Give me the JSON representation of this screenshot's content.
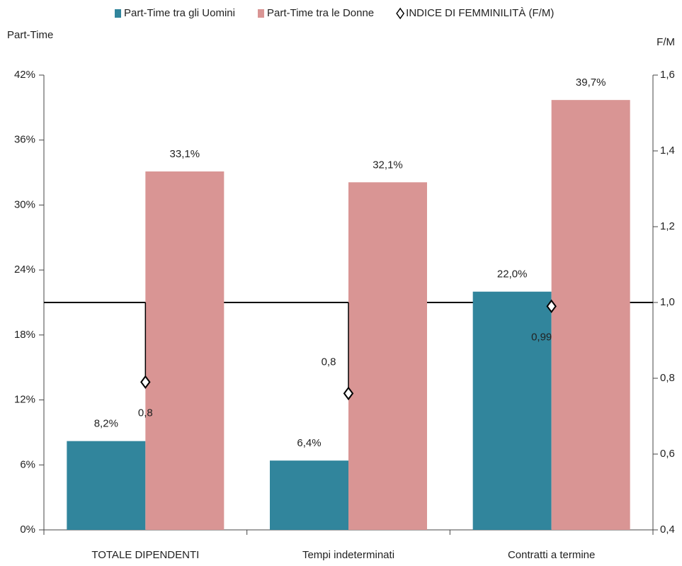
{
  "chart_data": {
    "type": "bar",
    "y_axis_label": "Part-Time",
    "y2_axis_label": "F/M",
    "categories": [
      "TOTALE DIPENDENTI",
      "Tempi indeterminati",
      "Contratti a termine"
    ],
    "series": [
      {
        "name": "Part-Time tra gli Uomini",
        "type": "bar",
        "color": "#31859c",
        "axis": "y",
        "values": [
          8.2,
          6.4,
          22.0
        ],
        "value_labels": [
          "8,2%",
          "6,4%",
          "22,0%"
        ]
      },
      {
        "name": "Part-Time tra le Donne",
        "type": "bar",
        "color": "#d99594",
        "axis": "y",
        "values": [
          33.1,
          32.1,
          39.7
        ],
        "value_labels": [
          "33,1%",
          "32,1%",
          "39,7%"
        ]
      },
      {
        "name": "INDICE DI FEMMINILITÀ (F/M)",
        "type": "scatter",
        "color": "#ffffff",
        "axis": "y2",
        "values": [
          0.79,
          0.76,
          0.99
        ],
        "value_labels": [
          "0,8",
          "0,8",
          "0,99"
        ]
      }
    ],
    "reference_line": {
      "value": 1,
      "axis": "y2"
    },
    "ylim": [
      0,
      42
    ],
    "yticks": [
      {
        "value": 0,
        "label": "0%"
      },
      {
        "value": 6,
        "label": "6%"
      },
      {
        "value": 12,
        "label": "12%"
      },
      {
        "value": 18,
        "label": "18%"
      },
      {
        "value": 24,
        "label": "24%"
      },
      {
        "value": 30,
        "label": "30%"
      },
      {
        "value": 36,
        "label": "36%"
      },
      {
        "value": 42,
        "label": "42%"
      }
    ],
    "y2lim": [
      0.4,
      1.6
    ],
    "y2ticks": [
      {
        "value": 0.4,
        "label": "0,4"
      },
      {
        "value": 0.6,
        "label": "0,6"
      },
      {
        "value": 0.8,
        "label": "0,8"
      },
      {
        "value": 1.0,
        "label": "1,0"
      },
      {
        "value": 1.2,
        "label": "1,2"
      },
      {
        "value": 1.4,
        "label": "1,4"
      },
      {
        "value": 1.6,
        "label": "1,6"
      }
    ],
    "grid": false,
    "legend": "top"
  }
}
